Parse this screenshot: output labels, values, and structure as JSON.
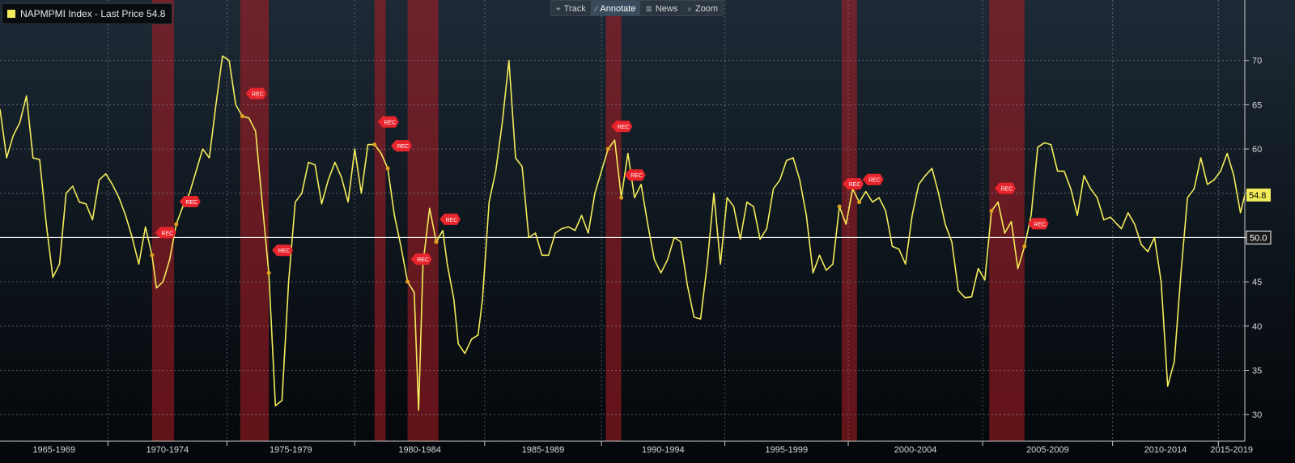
{
  "legend": {
    "label": "NAPMPMI Index - Last Price 54.8",
    "color": "#f3ec5a"
  },
  "toolbar": [
    {
      "label": "Track",
      "icon": "crosshair-icon",
      "glyph": "⌖"
    },
    {
      "label": "Annotate",
      "icon": "pencil-icon",
      "glyph": "⁄"
    },
    {
      "label": "News",
      "icon": "news-icon",
      "glyph": "≣"
    },
    {
      "label": "Zoom",
      "icon": "zoom-icon",
      "glyph": "⌕"
    }
  ],
  "chart_data": {
    "type": "line",
    "title": "",
    "series": [
      {
        "name": "NAPMPMI Index",
        "color": "#f3ec5a"
      }
    ],
    "last_price_label": "54.8",
    "reference_line": {
      "value": 50.0,
      "label": "50.0"
    },
    "ylim": [
      27,
      75
    ],
    "xlim": [
      1963.0,
      2019.5
    ],
    "yticks": [
      30,
      35,
      40,
      45,
      50,
      55,
      60,
      65,
      70
    ],
    "xtick_labels": [
      "1965-1969",
      "1970-1974",
      "1975-1979",
      "1980-1984",
      "1985-1989",
      "1990-1994",
      "1995-1999",
      "2000-2004",
      "2005-2009",
      "2010-2014",
      "2015-2019"
    ],
    "recession_annotation_label": "REC",
    "recession_color": "#b01e24",
    "recessions": [
      [
        1969.9,
        1970.9
      ],
      [
        1973.9,
        1975.2
      ],
      [
        1980.0,
        1980.5
      ],
      [
        1981.5,
        1982.9
      ],
      [
        1990.5,
        1991.2
      ],
      [
        2001.2,
        2001.9
      ],
      [
        2007.9,
        2009.5
      ]
    ],
    "points": [
      [
        1963.0,
        64.5
      ],
      [
        1963.3,
        59.0
      ],
      [
        1963.6,
        61.5
      ],
      [
        1963.9,
        63.0
      ],
      [
        1964.2,
        66.0
      ],
      [
        1964.5,
        59.0
      ],
      [
        1964.8,
        58.8
      ],
      [
        1965.1,
        51.5
      ],
      [
        1965.4,
        45.5
      ],
      [
        1965.7,
        47.0
      ],
      [
        1966.0,
        55.0
      ],
      [
        1966.3,
        55.8
      ],
      [
        1966.6,
        54.0
      ],
      [
        1966.9,
        53.8
      ],
      [
        1967.2,
        52.0
      ],
      [
        1967.5,
        56.5
      ],
      [
        1967.8,
        57.2
      ],
      [
        1968.1,
        56.0
      ],
      [
        1968.4,
        54.5
      ],
      [
        1968.7,
        52.5
      ],
      [
        1969.0,
        50.0
      ],
      [
        1969.3,
        47.0
      ],
      [
        1969.6,
        51.2
      ],
      [
        1969.9,
        48.0
      ],
      [
        1970.1,
        44.3
      ],
      [
        1970.4,
        45.0
      ],
      [
        1970.7,
        47.5
      ],
      [
        1971.0,
        51.5
      ],
      [
        1971.3,
        53.5
      ],
      [
        1971.6,
        55.0
      ],
      [
        1971.9,
        57.5
      ],
      [
        1972.2,
        60.0
      ],
      [
        1972.5,
        59.0
      ],
      [
        1972.8,
        65.0
      ],
      [
        1973.1,
        70.5
      ],
      [
        1973.4,
        70.0
      ],
      [
        1973.7,
        65.0
      ],
      [
        1974.0,
        63.7
      ],
      [
        1974.3,
        63.5
      ],
      [
        1974.6,
        62.0
      ],
      [
        1974.9,
        54.0
      ],
      [
        1975.2,
        46.0
      ],
      [
        1975.5,
        31.0
      ],
      [
        1975.8,
        31.6
      ],
      [
        1976.1,
        45.0
      ],
      [
        1976.4,
        54.0
      ],
      [
        1976.7,
        55.0
      ],
      [
        1977.0,
        58.5
      ],
      [
        1977.3,
        58.2
      ],
      [
        1977.6,
        53.8
      ],
      [
        1977.9,
        56.5
      ],
      [
        1978.2,
        58.5
      ],
      [
        1978.5,
        56.8
      ],
      [
        1978.8,
        54.0
      ],
      [
        1979.1,
        60.0
      ],
      [
        1979.4,
        55.0
      ],
      [
        1979.7,
        60.5
      ],
      [
        1980.0,
        60.5
      ],
      [
        1980.3,
        59.5
      ],
      [
        1980.6,
        57.8
      ],
      [
        1980.9,
        52.5
      ],
      [
        1981.2,
        49.0
      ],
      [
        1981.5,
        45.0
      ],
      [
        1981.8,
        43.8
      ],
      [
        1982.0,
        30.5
      ],
      [
        1982.2,
        47.0
      ],
      [
        1982.5,
        53.3
      ],
      [
        1982.8,
        49.5
      ],
      [
        1983.1,
        50.8
      ],
      [
        1983.3,
        47.0
      ],
      [
        1983.6,
        43.0
      ],
      [
        1983.8,
        38.0
      ],
      [
        1984.1,
        36.9
      ],
      [
        1984.4,
        38.5
      ],
      [
        1984.7,
        39.0
      ],
      [
        1984.9,
        43.0
      ],
      [
        1985.2,
        54.0
      ],
      [
        1985.5,
        57.5
      ],
      [
        1985.8,
        63.0
      ],
      [
        1986.1,
        70.0
      ],
      [
        1986.4,
        59.0
      ],
      [
        1986.7,
        58.0
      ],
      [
        1987.0,
        50.0
      ],
      [
        1987.3,
        50.5
      ],
      [
        1987.6,
        48.0
      ],
      [
        1987.9,
        48.0
      ],
      [
        1988.2,
        50.5
      ],
      [
        1988.5,
        51.0
      ],
      [
        1988.8,
        51.2
      ],
      [
        1989.1,
        50.8
      ],
      [
        1989.4,
        52.5
      ],
      [
        1989.7,
        50.5
      ],
      [
        1990.0,
        55.0
      ],
      [
        1990.3,
        57.5
      ],
      [
        1990.6,
        60.0
      ],
      [
        1990.9,
        61.0
      ],
      [
        1991.2,
        54.5
      ],
      [
        1991.5,
        59.5
      ],
      [
        1991.8,
        54.5
      ],
      [
        1992.1,
        56.0
      ],
      [
        1992.4,
        51.5
      ],
      [
        1992.7,
        47.5
      ],
      [
        1993.0,
        46.0
      ],
      [
        1993.3,
        47.5
      ],
      [
        1993.6,
        50.0
      ],
      [
        1993.9,
        49.5
      ],
      [
        1994.2,
        44.6
      ],
      [
        1994.5,
        41.0
      ],
      [
        1994.8,
        40.8
      ],
      [
        1995.1,
        47.0
      ],
      [
        1995.4,
        55.0
      ],
      [
        1995.7,
        47.0
      ],
      [
        1996.0,
        54.5
      ],
      [
        1996.3,
        53.5
      ],
      [
        1996.6,
        49.8
      ],
      [
        1996.9,
        54.0
      ],
      [
        1997.2,
        53.5
      ],
      [
        1997.5,
        49.8
      ],
      [
        1997.8,
        51.0
      ],
      [
        1998.1,
        55.5
      ],
      [
        1998.4,
        56.5
      ],
      [
        1998.7,
        58.7
      ],
      [
        1999.0,
        59.0
      ],
      [
        1999.3,
        56.5
      ],
      [
        1999.6,
        52.5
      ],
      [
        1999.9,
        46.0
      ],
      [
        2000.2,
        48.0
      ],
      [
        2000.5,
        46.3
      ],
      [
        2000.8,
        47.0
      ],
      [
        2001.1,
        53.5
      ],
      [
        2001.4,
        51.5
      ],
      [
        2001.7,
        55.5
      ],
      [
        2002.0,
        54.0
      ],
      [
        2002.3,
        55.2
      ],
      [
        2002.6,
        54.0
      ],
      [
        2002.9,
        54.5
      ],
      [
        2003.2,
        53.0
      ],
      [
        2003.5,
        49.0
      ],
      [
        2003.8,
        48.7
      ],
      [
        2004.1,
        47.0
      ],
      [
        2004.4,
        52.5
      ],
      [
        2004.7,
        56.0
      ],
      [
        2005.0,
        57.0
      ],
      [
        2005.3,
        57.8
      ],
      [
        2005.6,
        55.0
      ],
      [
        2005.9,
        51.5
      ],
      [
        2006.2,
        49.5
      ],
      [
        2006.5,
        44.0
      ],
      [
        2006.8,
        43.2
      ],
      [
        2007.1,
        43.3
      ],
      [
        2007.4,
        46.5
      ],
      [
        2007.7,
        45.2
      ],
      [
        2008.0,
        53.0
      ],
      [
        2008.3,
        54.0
      ],
      [
        2008.6,
        50.5
      ],
      [
        2008.9,
        51.8
      ],
      [
        2009.2,
        46.5
      ],
      [
        2009.5,
        49.0
      ],
      [
        2009.8,
        52.5
      ],
      [
        2010.1,
        60.2
      ],
      [
        2010.4,
        60.7
      ],
      [
        2010.7,
        60.5
      ],
      [
        2011.0,
        57.5
      ],
      [
        2011.3,
        57.5
      ],
      [
        2011.6,
        55.5
      ],
      [
        2011.9,
        52.5
      ],
      [
        2012.2,
        57.0
      ],
      [
        2012.5,
        55.5
      ],
      [
        2012.8,
        54.5
      ],
      [
        2013.1,
        52.0
      ],
      [
        2013.4,
        52.3
      ],
      [
        2013.7,
        51.5
      ],
      [
        2013.9,
        51.0
      ],
      [
        2014.2,
        52.8
      ],
      [
        2014.5,
        51.5
      ],
      [
        2014.8,
        49.2
      ],
      [
        2015.1,
        48.4
      ],
      [
        2015.4,
        50.0
      ],
      [
        2015.7,
        45.0
      ],
      [
        2016.0,
        33.2
      ],
      [
        2016.3,
        36.0
      ],
      [
        2016.6,
        46.0
      ],
      [
        2016.9,
        54.5
      ],
      [
        2017.2,
        55.5
      ],
      [
        2017.5,
        59.0
      ],
      [
        2017.8,
        56.0
      ],
      [
        2018.1,
        56.5
      ],
      [
        2018.4,
        57.5
      ],
      [
        2018.7,
        59.5
      ],
      [
        2019.0,
        57.0
      ],
      [
        2019.3,
        52.8
      ],
      [
        2019.5,
        54.8
      ]
    ]
  }
}
